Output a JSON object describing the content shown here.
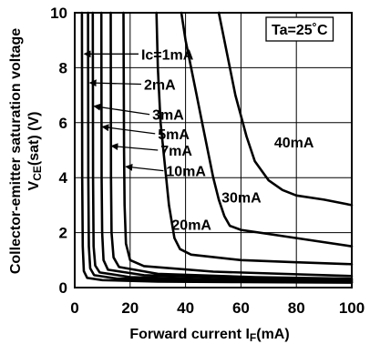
{
  "chart_data": {
    "type": "line",
    "xlabel_main": "Forward current I",
    "xlabel_sub": "F",
    "xlabel_unit": "(mA)",
    "ylabel_line1": "Collector-emitter saturation voltage",
    "ylabel_main": "V",
    "ylabel_sub": "CE",
    "ylabel_unit": "(sat) (V)",
    "annotation": "Ta=25˚C",
    "xlim": [
      0,
      100
    ],
    "ylim": [
      0,
      10
    ],
    "grid": true,
    "x_ticks": [
      0,
      20,
      40,
      60,
      80,
      100
    ],
    "x_tick_labels": [
      "0",
      "20",
      "40",
      "60",
      "80",
      "100"
    ],
    "y_ticks": [
      0,
      2,
      4,
      6,
      8,
      10
    ],
    "y_tick_labels": [
      "0",
      "2",
      "4",
      "6",
      "8",
      "10"
    ],
    "series": [
      {
        "label": "Ic=1mA",
        "label_pos": [
          24,
          8.5
        ],
        "arrow_to": [
          3.5,
          8.5
        ],
        "points": [
          [
            2.6,
            10
          ],
          [
            2.7,
            4
          ],
          [
            2.9,
            1.5
          ],
          [
            3.3,
            0.6
          ],
          [
            4.5,
            0.35
          ],
          [
            10,
            0.27
          ],
          [
            30,
            0.22
          ],
          [
            60,
            0.2
          ],
          [
            100,
            0.18
          ]
        ]
      },
      {
        "label": "2mA",
        "label_pos": [
          25,
          7.4
        ],
        "arrow_to": [
          5.5,
          7.45
        ],
        "points": [
          [
            4.8,
            10
          ],
          [
            4.9,
            4
          ],
          [
            5.1,
            1.5
          ],
          [
            5.6,
            0.7
          ],
          [
            7,
            0.45
          ],
          [
            15,
            0.33
          ],
          [
            40,
            0.26
          ],
          [
            70,
            0.23
          ],
          [
            100,
            0.2
          ]
        ]
      },
      {
        "label": "3mA",
        "label_pos": [
          28,
          6.3
        ],
        "arrow_to": [
          7,
          6.6
        ],
        "points": [
          [
            6.5,
            10
          ],
          [
            6.6,
            4
          ],
          [
            6.8,
            1.5
          ],
          [
            7.4,
            0.8
          ],
          [
            9,
            0.55
          ],
          [
            20,
            0.38
          ],
          [
            50,
            0.3
          ],
          [
            100,
            0.24
          ]
        ]
      },
      {
        "label": "5mA",
        "label_pos": [
          30,
          5.6
        ],
        "arrow_to": [
          10,
          5.85
        ],
        "points": [
          [
            9.6,
            10
          ],
          [
            9.7,
            4
          ],
          [
            9.9,
            2
          ],
          [
            10.4,
            1
          ],
          [
            12,
            0.65
          ],
          [
            25,
            0.45
          ],
          [
            60,
            0.35
          ],
          [
            100,
            0.28
          ]
        ]
      },
      {
        "label": "7mA",
        "label_pos": [
          31,
          5.0
        ],
        "arrow_to": [
          13.3,
          5.15
        ],
        "points": [
          [
            13,
            10
          ],
          [
            13.1,
            4
          ],
          [
            13.3,
            2
          ],
          [
            14,
            1.1
          ],
          [
            16,
            0.75
          ],
          [
            30,
            0.5
          ],
          [
            65,
            0.38
          ],
          [
            100,
            0.32
          ]
        ]
      },
      {
        "label": "10mA",
        "label_pos": [
          33,
          4.25
        ],
        "arrow_to": [
          18.5,
          4.4
        ],
        "points": [
          [
            17.6,
            10
          ],
          [
            17.8,
            5
          ],
          [
            18,
            3
          ],
          [
            18.5,
            1.6
          ],
          [
            20,
            1.0
          ],
          [
            25,
            0.78
          ],
          [
            50,
            0.58
          ],
          [
            100,
            0.42
          ]
        ]
      },
      {
        "label": "20mA",
        "label_pos": [
          35,
          2.3
        ],
        "arrow_to": null,
        "points": [
          [
            29.5,
            10
          ],
          [
            30,
            8
          ],
          [
            31,
            6
          ],
          [
            32.5,
            4.5
          ],
          [
            34,
            3
          ],
          [
            36,
            1.8
          ],
          [
            38,
            1.4
          ],
          [
            42,
            1.2
          ],
          [
            60,
            1.0
          ],
          [
            80,
            0.92
          ],
          [
            100,
            0.85
          ]
        ]
      },
      {
        "label": "30mA",
        "label_pos": [
          53,
          3.3
        ],
        "arrow_to": null,
        "points": [
          [
            38.5,
            10
          ],
          [
            40,
            9
          ],
          [
            42,
            8
          ],
          [
            44,
            7
          ],
          [
            46,
            6
          ],
          [
            48,
            5
          ],
          [
            50,
            4
          ],
          [
            52,
            3.2
          ],
          [
            54,
            2.6
          ],
          [
            56,
            2.25
          ],
          [
            60,
            2.1
          ],
          [
            80,
            1.8
          ],
          [
            100,
            1.5
          ]
        ]
      },
      {
        "label": "40mA",
        "label_pos": [
          72,
          5.3
        ],
        "arrow_to": null,
        "points": [
          [
            52,
            10
          ],
          [
            55,
            8.5
          ],
          [
            58,
            7
          ],
          [
            62,
            5.5
          ],
          [
            65,
            4.6
          ],
          [
            70,
            3.9
          ],
          [
            75,
            3.55
          ],
          [
            80,
            3.35
          ],
          [
            90,
            3.2
          ],
          [
            100,
            3.0
          ]
        ]
      }
    ]
  }
}
